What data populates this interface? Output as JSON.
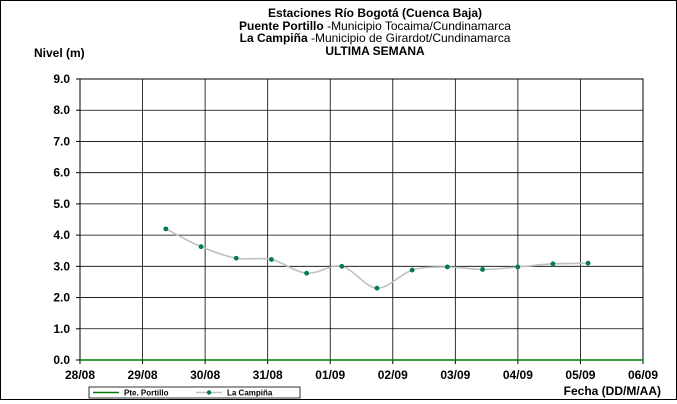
{
  "chart_data": {
    "type": "line",
    "title_lines": [
      {
        "bold": "Estaciones Río Bogotá (Cuenca Baja)",
        "rest": ""
      },
      {
        "bold": "Puente Portillo",
        "rest": " -Municipio Tocaima/Cundinamarca"
      },
      {
        "bold": "La Campiña",
        "rest": " -Municipio de Girardot/Cundinamarca"
      },
      {
        "bold": "ULTIMA SEMANA",
        "rest": ""
      }
    ],
    "ylabel": "Nivel (m)",
    "xlabel": "Fecha (DD/M/AA)",
    "ylim": [
      0,
      9
    ],
    "yticks": [
      "0.0",
      "1.0",
      "2.0",
      "3.0",
      "4.0",
      "5.0",
      "6.0",
      "7.0",
      "8.0",
      "9.0"
    ],
    "xlim": [
      0,
      8
    ],
    "xticks": [
      "28/08",
      "29/08",
      "30/08",
      "31/08",
      "01/09",
      "02/09",
      "03/09",
      "04/09",
      "05/09",
      "06/09"
    ],
    "grid": true,
    "legend_position": "bottom-left",
    "series": [
      {
        "name": "Pte. Portillo",
        "color": "#007a00",
        "marker": "none",
        "x": [
          0,
          8
        ],
        "y": [
          0.0,
          0.0
        ]
      },
      {
        "name": "La Campiña",
        "color": "#c0c0c0",
        "marker_color": "#007a5a",
        "marker": "circle",
        "x": [
          1.22,
          1.72,
          2.22,
          2.72,
          3.22,
          3.72,
          4.22,
          4.72,
          5.22,
          5.72,
          6.22,
          6.72,
          7.22
        ],
        "y": [
          4.2,
          3.63,
          3.26,
          3.22,
          2.78,
          3.0,
          2.3,
          2.88,
          2.98,
          2.9,
          2.98,
          3.08,
          3.1
        ]
      }
    ]
  }
}
